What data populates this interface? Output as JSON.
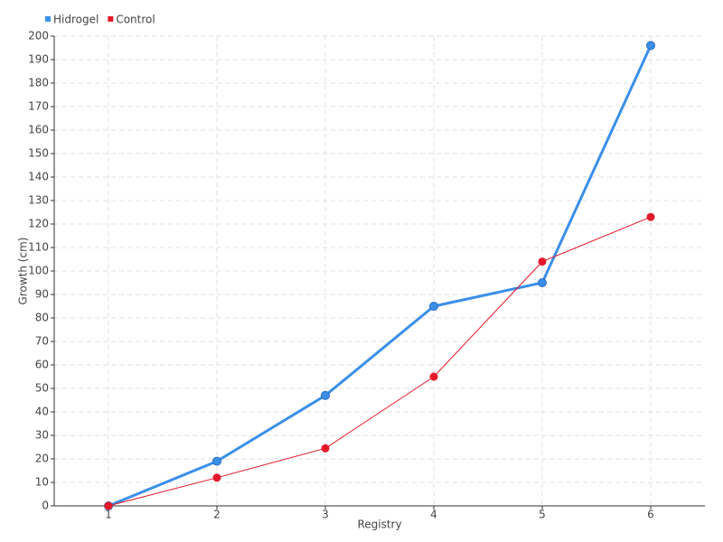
{
  "chart_data": {
    "type": "line",
    "x_label": "Registry",
    "y_label": "Growth (cm)",
    "categories": [
      "1",
      "2",
      "3",
      "4",
      "5",
      "6"
    ],
    "series": [
      {
        "name": "Hidrogel",
        "color": "#3b8fe8",
        "values": [
          0,
          19,
          47,
          85,
          95,
          196
        ]
      },
      {
        "name": "Control",
        "color": "#e3192a",
        "values": [
          0,
          12,
          24.5,
          55,
          104,
          123
        ]
      }
    ],
    "ylim": [
      0,
      200
    ],
    "yticks": [
      0,
      10,
      20,
      30,
      40,
      50,
      60,
      70,
      80,
      90,
      100,
      110,
      120,
      130,
      140,
      150,
      160,
      170,
      180,
      190,
      200
    ],
    "grid": true,
    "legend": "top-left"
  }
}
